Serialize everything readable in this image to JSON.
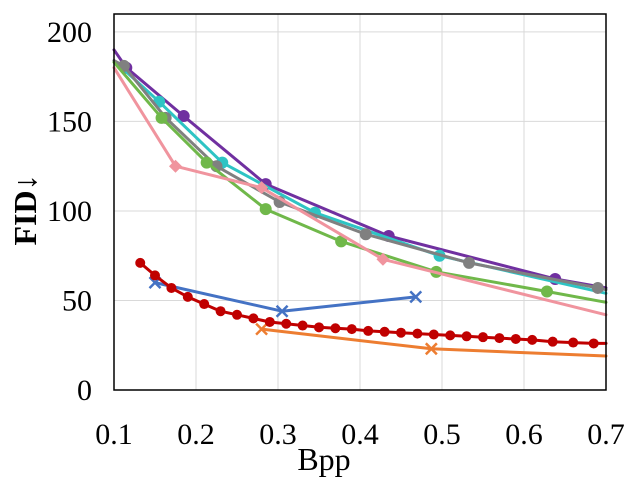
{
  "chart_data": {
    "type": "line",
    "title": "",
    "xlabel": "Bpp",
    "ylabel": "FID↓",
    "xlim": [
      0.1,
      0.7
    ],
    "ylim": [
      0,
      210
    ],
    "xticks": [
      "0.1",
      "0.2",
      "0.3",
      "0.4",
      "0.5",
      "0.6",
      "0.7"
    ],
    "yticks": [
      "0",
      "50",
      "100",
      "150",
      "200"
    ],
    "xtick_values": [
      0.1,
      0.2,
      0.3,
      0.4,
      0.5,
      0.6,
      0.7
    ],
    "ytick_values": [
      0,
      50,
      100,
      150,
      200
    ],
    "grid": true,
    "series": [
      {
        "name": "purple",
        "color": "#7030a0",
        "marker": "circle",
        "x": [
          0.1,
          0.115,
          0.185,
          0.285,
          0.435,
          0.638,
          0.7
        ],
        "y": [
          190,
          180,
          153,
          115,
          86,
          62,
          57
        ],
        "marker_flags": [
          0,
          1,
          1,
          1,
          1,
          1,
          0
        ]
      },
      {
        "name": "teal",
        "color": "#2ec4c4",
        "marker": "circle",
        "x": [
          0.1,
          0.155,
          0.232,
          0.345,
          0.497,
          0.7
        ],
        "y": [
          184,
          161,
          127,
          99,
          75,
          54
        ],
        "marker_flags": [
          0,
          1,
          1,
          1,
          1,
          0
        ]
      },
      {
        "name": "gray",
        "color": "#808080",
        "marker": "circle",
        "x": [
          0.1,
          0.112,
          0.163,
          0.225,
          0.302,
          0.407,
          0.533,
          0.69,
          0.7
        ],
        "y": [
          184,
          181,
          152,
          125,
          105,
          87,
          71,
          57,
          56
        ],
        "marker_flags": [
          0,
          1,
          1,
          1,
          1,
          1,
          1,
          1,
          0
        ]
      },
      {
        "name": "green",
        "color": "#70b84a",
        "marker": "circle",
        "x": [
          0.1,
          0.158,
          0.213,
          0.285,
          0.377,
          0.493,
          0.628,
          0.7
        ],
        "y": [
          183,
          152,
          127,
          101,
          83,
          66,
          55,
          49
        ],
        "marker_flags": [
          0,
          1,
          1,
          1,
          1,
          1,
          1,
          0
        ]
      },
      {
        "name": "pink",
        "color": "#f0949e",
        "marker": "diamond",
        "x": [
          0.1,
          0.175,
          0.28,
          0.428,
          0.7
        ],
        "y": [
          180,
          125,
          113,
          73,
          42
        ],
        "marker_flags": [
          0,
          1,
          1,
          1,
          0
        ]
      },
      {
        "name": "blue",
        "color": "#4472c4",
        "marker": "x",
        "x": [
          0.15,
          0.305,
          0.468
        ],
        "y": [
          60,
          44,
          52
        ],
        "marker_flags": [
          1,
          1,
          1
        ]
      },
      {
        "name": "orange",
        "color": "#ed7d31",
        "marker": "x",
        "x": [
          0.28,
          0.487,
          0.7
        ],
        "y": [
          34,
          23,
          19
        ],
        "marker_flags": [
          1,
          1,
          0
        ]
      },
      {
        "name": "red",
        "color": "#c00000",
        "marker": "dot",
        "x": [
          0.132,
          0.15,
          0.17,
          0.19,
          0.21,
          0.23,
          0.25,
          0.27,
          0.29,
          0.31,
          0.33,
          0.35,
          0.37,
          0.39,
          0.41,
          0.43,
          0.45,
          0.47,
          0.49,
          0.51,
          0.53,
          0.55,
          0.57,
          0.59,
          0.61,
          0.635,
          0.66,
          0.685,
          0.7
        ],
        "y": [
          71,
          64,
          57,
          52,
          48,
          44,
          42,
          40,
          38,
          37,
          36,
          35,
          34.5,
          34,
          33,
          32.5,
          32,
          31.5,
          31,
          30.5,
          30,
          29.5,
          29,
          28.5,
          28,
          27,
          26.5,
          26,
          26
        ],
        "marker_flags": [
          1,
          1,
          1,
          1,
          1,
          1,
          1,
          1,
          1,
          1,
          1,
          1,
          1,
          1,
          1,
          1,
          1,
          1,
          1,
          1,
          1,
          1,
          1,
          1,
          1,
          1,
          1,
          1,
          0
        ]
      }
    ]
  }
}
